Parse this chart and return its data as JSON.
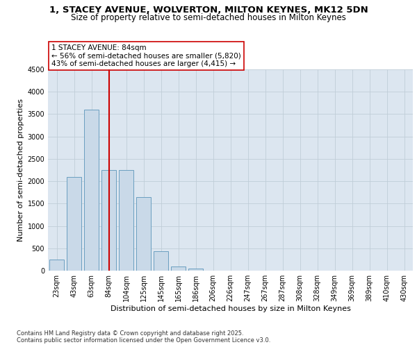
{
  "title_line1": "1, STACEY AVENUE, WOLVERTON, MILTON KEYNES, MK12 5DN",
  "title_line2": "Size of property relative to semi-detached houses in Milton Keynes",
  "xlabel": "Distribution of semi-detached houses by size in Milton Keynes",
  "ylabel": "Number of semi-detached properties",
  "bin_labels": [
    "23sqm",
    "43sqm",
    "63sqm",
    "84sqm",
    "104sqm",
    "125sqm",
    "145sqm",
    "165sqm",
    "186sqm",
    "206sqm",
    "226sqm",
    "247sqm",
    "267sqm",
    "287sqm",
    "308sqm",
    "328sqm",
    "349sqm",
    "369sqm",
    "389sqm",
    "410sqm",
    "430sqm"
  ],
  "bar_heights": [
    250,
    2100,
    3600,
    2250,
    2250,
    1650,
    430,
    100,
    50,
    0,
    0,
    0,
    0,
    0,
    0,
    0,
    0,
    0,
    0,
    0,
    0
  ],
  "bar_color": "#c9d9e8",
  "bar_edgecolor": "#6a9fc0",
  "grid_color": "#c0cdd8",
  "background_color": "#dce6f0",
  "vline_x_index": 3,
  "vline_color": "#cc0000",
  "annotation_title": "1 STACEY AVENUE: 84sqm",
  "annotation_line1": "← 56% of semi-detached houses are smaller (5,820)",
  "annotation_line2": "43% of semi-detached houses are larger (4,415) →",
  "annotation_box_color": "#ffffff",
  "annotation_box_edgecolor": "#cc0000",
  "ylim": [
    0,
    4500
  ],
  "yticks": [
    0,
    500,
    1000,
    1500,
    2000,
    2500,
    3000,
    3500,
    4000,
    4500
  ],
  "footer_line1": "Contains HM Land Registry data © Crown copyright and database right 2025.",
  "footer_line2": "Contains public sector information licensed under the Open Government Licence v3.0.",
  "title_fontsize": 9.5,
  "subtitle_fontsize": 8.5,
  "axis_label_fontsize": 8,
  "tick_fontsize": 7,
  "annotation_fontsize": 7.5,
  "footer_fontsize": 6
}
